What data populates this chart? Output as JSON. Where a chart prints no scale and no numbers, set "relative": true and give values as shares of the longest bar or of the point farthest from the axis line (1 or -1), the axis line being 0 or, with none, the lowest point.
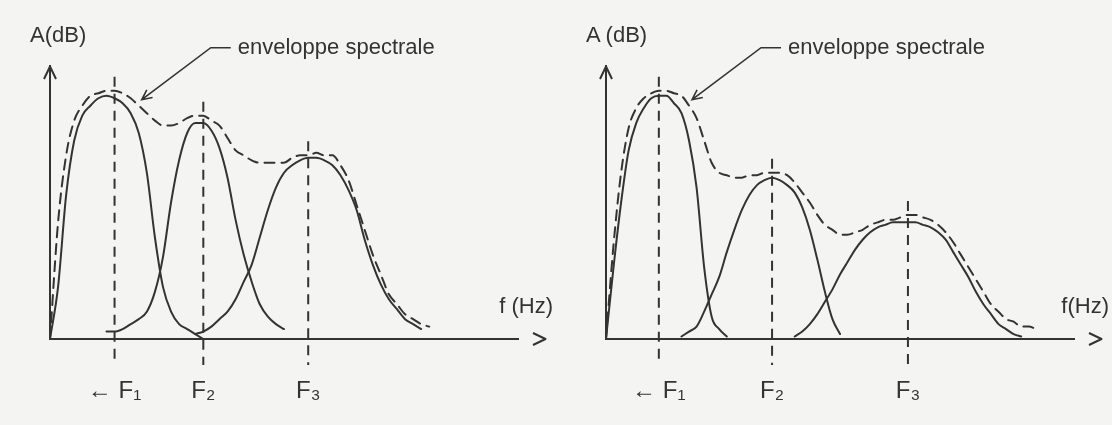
{
  "chart_data": [
    {
      "type": "line",
      "relative": true,
      "xlabel": "f (Hz)",
      "ylabel": "A(dB)",
      "categories": [
        null,
        null,
        null,
        null,
        null,
        null,
        null,
        null,
        "← F₁",
        null,
        null,
        null,
        null,
        null,
        null,
        null,
        null,
        null,
        null,
        "F₂",
        null,
        null,
        null,
        null,
        null,
        null,
        null,
        null,
        null,
        null,
        null,
        null,
        "F₃",
        null,
        null,
        null,
        null,
        null,
        null,
        null,
        null,
        null,
        null,
        null,
        null,
        null,
        null,
        null,
        null,
        null,
        null,
        null,
        null,
        null,
        null,
        null,
        null,
        null,
        null
      ],
      "series": [
        {
          "color": "#333333",
          "values": [
            0,
            0.21,
            0.58,
            0.8,
            0.9,
            0.94,
            0.97,
            0.98,
            0.97,
            0.95,
            0.91,
            0.83,
            0.67,
            0.41,
            0.21,
            0.11,
            0.06,
            0.04,
            0.02,
            0,
            null,
            null,
            null,
            null,
            null,
            null,
            null,
            null,
            null,
            null,
            null,
            null,
            null,
            null,
            null,
            null,
            null,
            null,
            null,
            null,
            null,
            null,
            null,
            null,
            null,
            null,
            null,
            null,
            null,
            null,
            null,
            null,
            null,
            null,
            null,
            null,
            null,
            null,
            null
          ]
        },
        {
          "color": "#333333",
          "values": [
            null,
            null,
            null,
            null,
            null,
            null,
            null,
            0.03,
            0.03,
            0.04,
            0.06,
            0.08,
            0.11,
            0.19,
            0.33,
            0.55,
            0.72,
            0.83,
            0.87,
            0.87,
            0.84,
            0.77,
            0.65,
            0.48,
            0.34,
            0.23,
            0.14,
            0.09,
            0.06,
            0.04,
            null,
            null,
            null,
            null,
            null,
            null,
            null,
            null,
            null,
            null,
            null,
            null,
            null,
            null,
            null,
            null,
            null,
            null,
            null,
            null,
            null,
            null,
            null,
            null,
            null,
            null,
            null,
            null,
            null
          ]
        },
        {
          "color": "#333333",
          "values": [
            null,
            null,
            null,
            null,
            null,
            null,
            null,
            null,
            null,
            null,
            null,
            null,
            null,
            null,
            null,
            null,
            null,
            null,
            0.02,
            0.03,
            0.05,
            0.08,
            0.11,
            0.16,
            0.23,
            0.3,
            0.41,
            0.52,
            0.61,
            0.67,
            0.7,
            0.72,
            0.73,
            0.73,
            0.72,
            0.7,
            0.66,
            0.6,
            0.52,
            0.4,
            0.3,
            0.22,
            0.16,
            0.12,
            0.08,
            0.06,
            0.04,
            null,
            null,
            null,
            null,
            null,
            null,
            null,
            null,
            null,
            null,
            null,
            null
          ]
        },
        {
          "name": "enveloppe spectrale",
          "color": "#333333",
          "line_style": "dashed",
          "values": [
            0,
            0.47,
            0.74,
            0.88,
            0.94,
            0.98,
            0.99,
            1,
            1,
            0.99,
            0.97,
            0.94,
            0.91,
            0.88,
            0.86,
            0.86,
            0.87,
            0.89,
            0.9,
            0.9,
            0.88,
            0.86,
            0.81,
            0.76,
            0.74,
            0.72,
            0.71,
            0.71,
            0.71,
            0.71,
            0.73,
            0.74,
            0.74,
            0.75,
            0.74,
            0.74,
            0.7,
            0.64,
            0.54,
            0.44,
            0.34,
            0.26,
            0.18,
            0.14,
            0.1,
            0.08,
            0.06,
            0.05,
            null,
            null,
            null,
            null,
            null,
            null,
            null,
            null,
            null,
            null,
            null
          ]
        }
      ],
      "ref_lines": [
        {
          "axis": "x",
          "value": "← F₁",
          "line_style": "dashed"
        },
        {
          "axis": "x",
          "value": "F₂",
          "line_style": "dashed"
        },
        {
          "axis": "x",
          "value": "F₃",
          "line_style": "dashed"
        }
      ]
    },
    {
      "type": "line",
      "relative": true,
      "xlabel": "f(Hz)",
      "ylabel": "A (dB)",
      "categories": [
        null,
        null,
        null,
        null,
        null,
        null,
        null,
        "← F₁",
        null,
        null,
        null,
        null,
        null,
        null,
        null,
        null,
        null,
        null,
        null,
        null,
        null,
        null,
        "F₂",
        null,
        null,
        null,
        null,
        null,
        null,
        null,
        null,
        null,
        null,
        null,
        null,
        null,
        null,
        null,
        null,
        null,
        "F₃",
        null,
        null,
        null,
        null,
        null,
        null,
        null,
        null,
        null,
        null,
        null,
        null,
        null,
        null,
        null,
        null,
        null,
        null,
        null,
        null,
        null,
        null
      ],
      "series": [
        {
          "color": "#333333",
          "values": [
            0,
            0.29,
            0.55,
            0.76,
            0.87,
            0.93,
            0.97,
            0.98,
            0.98,
            0.95,
            0.91,
            0.8,
            0.61,
            0.29,
            0.09,
            0.04,
            0.01,
            null,
            null,
            null,
            null,
            null,
            null,
            null,
            null,
            null,
            null,
            null,
            null,
            null,
            null,
            null,
            null,
            null,
            null,
            null,
            null,
            null,
            null,
            null,
            null,
            null,
            null,
            null,
            null,
            null,
            null,
            null,
            null,
            null,
            null,
            null,
            null,
            null,
            null,
            null,
            null,
            null,
            null,
            null,
            null,
            null,
            null
          ]
        },
        {
          "color": "#333333",
          "values": [
            null,
            null,
            null,
            null,
            null,
            null,
            null,
            null,
            null,
            null,
            0.01,
            0.03,
            0.05,
            0.11,
            0.18,
            0.25,
            0.35,
            0.44,
            0.52,
            0.58,
            0.62,
            0.64,
            0.65,
            0.64,
            0.62,
            0.59,
            0.53,
            0.44,
            0.32,
            0.19,
            0.08,
            0.02,
            null,
            null,
            null,
            null,
            null,
            null,
            null,
            null,
            null,
            null,
            null,
            null,
            null,
            null,
            null,
            null,
            null,
            null,
            null,
            null,
            null,
            null,
            null,
            null,
            null,
            null,
            null,
            null,
            null,
            null,
            null
          ]
        },
        {
          "color": "#333333",
          "values": [
            null,
            null,
            null,
            null,
            null,
            null,
            null,
            null,
            null,
            null,
            null,
            null,
            null,
            null,
            null,
            null,
            null,
            null,
            null,
            null,
            null,
            null,
            null,
            null,
            null,
            0.01,
            0.03,
            0.06,
            0.1,
            0.15,
            0.2,
            0.26,
            0.31,
            0.36,
            0.4,
            0.43,
            0.45,
            0.46,
            0.47,
            0.47,
            0.47,
            0.47,
            0.46,
            0.45,
            0.43,
            0.4,
            0.35,
            0.3,
            0.25,
            0.19,
            0.14,
            0.1,
            0.06,
            0.04,
            0.02,
            0.01,
            null,
            null,
            null,
            null,
            null,
            null,
            null
          ]
        },
        {
          "name": "enveloppe spectrale",
          "color": "#333333",
          "line_style": "dashed",
          "values": [
            0,
            0.38,
            0.67,
            0.85,
            0.93,
            0.97,
            0.99,
            1,
            1,
            0.99,
            0.98,
            0.94,
            0.89,
            0.8,
            0.71,
            0.67,
            0.66,
            0.65,
            0.65,
            0.66,
            0.66,
            0.67,
            0.67,
            0.67,
            0.66,
            0.63,
            0.59,
            0.55,
            0.5,
            0.46,
            0.44,
            0.42,
            0.42,
            0.43,
            0.44,
            0.46,
            0.47,
            0.48,
            0.48,
            0.49,
            0.5,
            0.5,
            0.49,
            0.48,
            0.46,
            0.43,
            0.39,
            0.34,
            0.29,
            0.24,
            0.19,
            0.14,
            0.11,
            0.08,
            0.07,
            0.05,
            0.05,
            0.04,
            null,
            null,
            null,
            null,
            null
          ]
        }
      ],
      "ref_lines": [
        {
          "axis": "x",
          "value": "← F₁",
          "line_style": "dashed"
        },
        {
          "axis": "x",
          "value": "F₂",
          "line_style": "dashed"
        },
        {
          "axis": "x",
          "value": "F₃",
          "line_style": "dashed"
        }
      ]
    }
  ]
}
